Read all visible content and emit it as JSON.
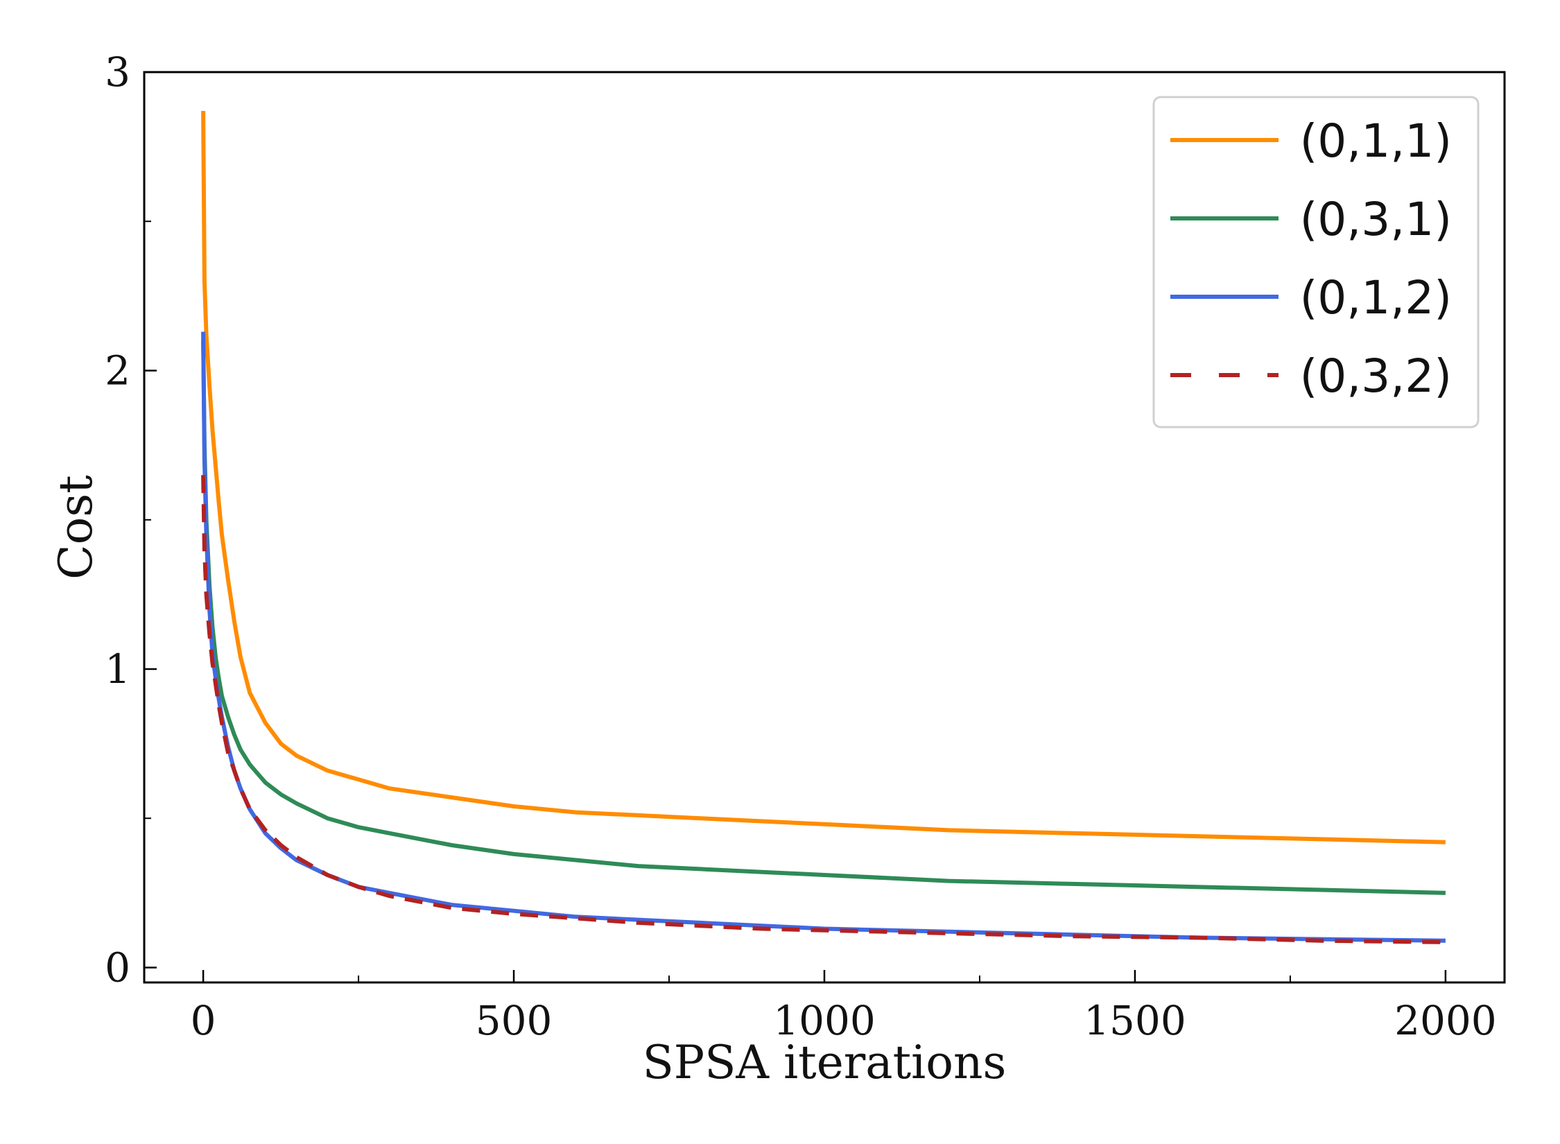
{
  "chart_data": {
    "type": "line",
    "title": "",
    "xlabel": "SPSA iterations",
    "ylabel": "Cost",
    "xlim": [
      -95,
      2095
    ],
    "ylim": [
      -0.05,
      3.0
    ],
    "xticks": [
      0,
      500,
      1000,
      1500,
      2000
    ],
    "xtick_labels": [
      "0",
      "500",
      "1000",
      "1500",
      "2000"
    ],
    "xminor": [
      250,
      750,
      1250,
      1750
    ],
    "yticks": [
      0,
      1,
      2,
      3
    ],
    "ytick_labels": [
      "0",
      "1",
      "2",
      "3"
    ],
    "yminor": [
      0.5,
      1.5,
      2.5
    ],
    "grid": false,
    "legend_position": "top-right",
    "series": [
      {
        "name": "(0,1,1)",
        "color": "#ff8c00",
        "style": "solid",
        "x": [
          0,
          2,
          5,
          10,
          15,
          20,
          25,
          30,
          40,
          50,
          60,
          75,
          100,
          125,
          150,
          200,
          250,
          300,
          400,
          500,
          600,
          700,
          800,
          900,
          1000,
          1200,
          1400,
          1600,
          1800,
          2000
        ],
        "y": [
          2.87,
          2.3,
          2.12,
          1.95,
          1.8,
          1.68,
          1.56,
          1.45,
          1.3,
          1.16,
          1.04,
          0.92,
          0.82,
          0.75,
          0.71,
          0.66,
          0.63,
          0.6,
          0.57,
          0.54,
          0.52,
          0.51,
          0.5,
          0.49,
          0.48,
          0.46,
          0.45,
          0.44,
          0.43,
          0.42
        ]
      },
      {
        "name": "(0,3,1)",
        "color": "#2e8b57",
        "style": "solid",
        "x": [
          0,
          2,
          5,
          10,
          15,
          20,
          25,
          30,
          40,
          50,
          60,
          75,
          100,
          125,
          150,
          200,
          250,
          300,
          400,
          500,
          600,
          700,
          800,
          900,
          1000,
          1200,
          1400,
          1600,
          1800,
          2000
        ],
        "y": [
          2.1,
          1.75,
          1.5,
          1.28,
          1.14,
          1.04,
          0.97,
          0.91,
          0.84,
          0.78,
          0.73,
          0.68,
          0.62,
          0.58,
          0.55,
          0.5,
          0.47,
          0.45,
          0.41,
          0.38,
          0.36,
          0.34,
          0.33,
          0.32,
          0.31,
          0.29,
          0.28,
          0.27,
          0.26,
          0.25
        ]
      },
      {
        "name": "(0,1,2)",
        "color": "#4169e1",
        "style": "solid",
        "x": [
          0,
          2,
          5,
          10,
          15,
          20,
          25,
          30,
          40,
          50,
          60,
          75,
          100,
          125,
          150,
          200,
          250,
          300,
          400,
          500,
          600,
          700,
          800,
          900,
          1000,
          1200,
          1400,
          1600,
          1800,
          2000
        ],
        "y": [
          2.13,
          1.7,
          1.45,
          1.2,
          1.05,
          0.97,
          0.9,
          0.84,
          0.74,
          0.66,
          0.6,
          0.53,
          0.45,
          0.4,
          0.36,
          0.31,
          0.27,
          0.25,
          0.21,
          0.19,
          0.17,
          0.16,
          0.15,
          0.14,
          0.13,
          0.12,
          0.11,
          0.1,
          0.095,
          0.09
        ]
      },
      {
        "name": "(0,3,2)",
        "color": "#b22222",
        "style": "dashed",
        "x": [
          0,
          2,
          5,
          10,
          15,
          20,
          25,
          30,
          40,
          50,
          60,
          75,
          100,
          125,
          150,
          200,
          250,
          300,
          400,
          500,
          600,
          700,
          800,
          900,
          1000,
          1200,
          1400,
          1600,
          1800,
          2000
        ],
        "y": [
          1.65,
          1.4,
          1.25,
          1.12,
          1.02,
          0.95,
          0.88,
          0.82,
          0.72,
          0.66,
          0.6,
          0.53,
          0.46,
          0.41,
          0.37,
          0.31,
          0.27,
          0.24,
          0.2,
          0.18,
          0.165,
          0.15,
          0.14,
          0.13,
          0.125,
          0.115,
          0.105,
          0.1,
          0.09,
          0.085
        ]
      }
    ]
  }
}
